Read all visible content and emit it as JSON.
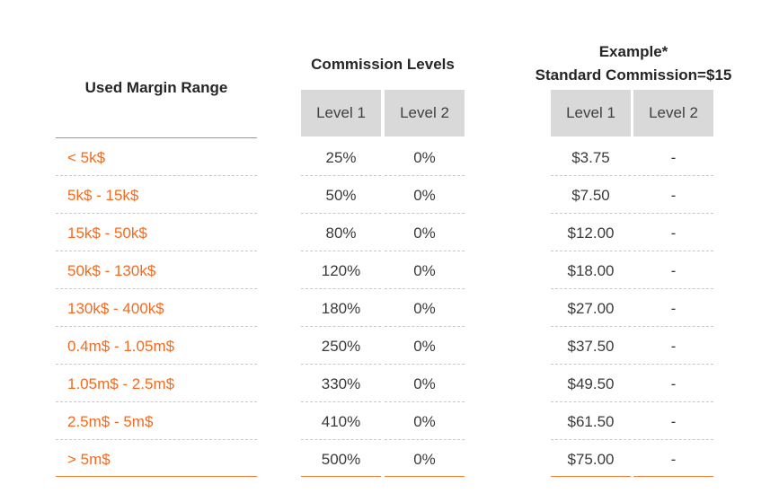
{
  "headers": {
    "range": "Used Margin Range",
    "commission": "Commission Levels",
    "example_line1": "Example*",
    "example_line2": "Standard Commission=$15",
    "level1": "Level 1",
    "level2": "Level 2",
    "ex_level1": "Level 1",
    "ex_level2": "Level 2"
  },
  "rows": [
    {
      "range": "< 5k$",
      "level1": "25%",
      "level2": "0%",
      "ex_level1": "$3.75",
      "ex_level2": "-"
    },
    {
      "range": "5k$ - 15k$",
      "level1": "50%",
      "level2": "0%",
      "ex_level1": "$7.50",
      "ex_level2": "-"
    },
    {
      "range": "15k$ - 50k$",
      "level1": "80%",
      "level2": "0%",
      "ex_level1": "$12.00",
      "ex_level2": "-"
    },
    {
      "range": "50k$ - 130k$",
      "level1": "120%",
      "level2": "0%",
      "ex_level1": "$18.00",
      "ex_level2": "-"
    },
    {
      "range": "130k$ - 400k$",
      "level1": "180%",
      "level2": "0%",
      "ex_level1": "$27.00",
      "ex_level2": "-"
    },
    {
      "range": "0.4m$ - 1.05m$",
      "level1": "250%",
      "level2": "0%",
      "ex_level1": "$37.50",
      "ex_level2": "-"
    },
    {
      "range": "1.05m$ - 2.5m$",
      "level1": "330%",
      "level2": "0%",
      "ex_level1": "$49.50",
      "ex_level2": "-"
    },
    {
      "range": "2.5m$ - 5m$",
      "level1": "410%",
      "level2": "0%",
      "ex_level1": "$61.50",
      "ex_level2": "-"
    },
    {
      "range": "> 5m$",
      "level1": "500%",
      "level2": "0%",
      "ex_level1": "$75.00",
      "ex_level2": "-"
    }
  ],
  "colors": {
    "range_text": "#f26b21",
    "rule": "#f07c3a",
    "header_fill": "#d9d9d9"
  }
}
